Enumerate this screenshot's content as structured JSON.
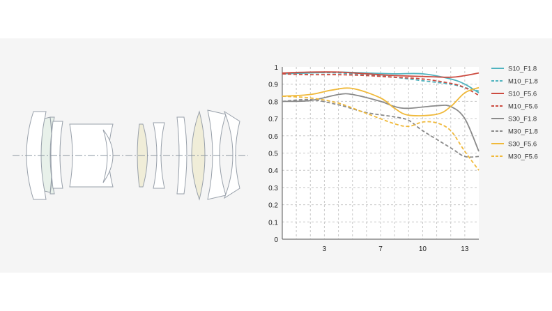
{
  "chart_data": {
    "type": "line",
    "title": "",
    "xlabel": "",
    "ylabel": "",
    "xlim": [
      0,
      14
    ],
    "ylim": [
      0,
      1
    ],
    "xticks": [
      3,
      7,
      10,
      13
    ],
    "yticks": [
      0,
      0.1,
      0.2,
      0.3,
      0.4,
      0.5,
      0.6,
      0.7,
      0.8,
      0.9,
      1
    ],
    "ytick_labels": [
      "0",
      "0.1",
      "0.2",
      "0.3",
      "0.4",
      "0.5",
      "0.6",
      "0.7",
      "0.8",
      "0.9",
      "1"
    ],
    "xtick_labels": [
      "3",
      "7",
      "10",
      "13"
    ],
    "grid": true,
    "legend_position": "right",
    "series": [
      {
        "name": "S10_F1.8",
        "color": "#4fb3bf",
        "dash": false,
        "points": [
          [
            0,
            0.96
          ],
          [
            2,
            0.965
          ],
          [
            4,
            0.97
          ],
          [
            6,
            0.965
          ],
          [
            8,
            0.96
          ],
          [
            10,
            0.96
          ],
          [
            12,
            0.93
          ],
          [
            13,
            0.9
          ],
          [
            14,
            0.85
          ]
        ]
      },
      {
        "name": "M10_F1.8",
        "color": "#4fb3bf",
        "dash": true,
        "points": [
          [
            0,
            0.96
          ],
          [
            2,
            0.965
          ],
          [
            4,
            0.965
          ],
          [
            6,
            0.955
          ],
          [
            8,
            0.94
          ],
          [
            10,
            0.92
          ],
          [
            12,
            0.9
          ],
          [
            13,
            0.88
          ],
          [
            14,
            0.86
          ]
        ]
      },
      {
        "name": "S10_F5.6",
        "color": "#cc4a3f",
        "dash": false,
        "points": [
          [
            0,
            0.965
          ],
          [
            2,
            0.97
          ],
          [
            4,
            0.97
          ],
          [
            6,
            0.96
          ],
          [
            8,
            0.95
          ],
          [
            10,
            0.945
          ],
          [
            12,
            0.94
          ],
          [
            13,
            0.95
          ],
          [
            14,
            0.965
          ]
        ]
      },
      {
        "name": "M10_F5.6",
        "color": "#cc4a3f",
        "dash": true,
        "points": [
          [
            0,
            0.96
          ],
          [
            2,
            0.955
          ],
          [
            4,
            0.955
          ],
          [
            6,
            0.95
          ],
          [
            8,
            0.94
          ],
          [
            10,
            0.93
          ],
          [
            12,
            0.905
          ],
          [
            13,
            0.88
          ],
          [
            14,
            0.835
          ]
        ]
      },
      {
        "name": "S30_F1.8",
        "color": "#8a8a8a",
        "dash": false,
        "points": [
          [
            0,
            0.8
          ],
          [
            2,
            0.805
          ],
          [
            4,
            0.84
          ],
          [
            5,
            0.84
          ],
          [
            7,
            0.8
          ],
          [
            8,
            0.77
          ],
          [
            9,
            0.76
          ],
          [
            11,
            0.775
          ],
          [
            12,
            0.77
          ],
          [
            13,
            0.7
          ],
          [
            14,
            0.51
          ]
        ]
      },
      {
        "name": "M30_F1.8",
        "color": "#8a8a8a",
        "dash": true,
        "points": [
          [
            0,
            0.8
          ],
          [
            2,
            0.81
          ],
          [
            4,
            0.78
          ],
          [
            6,
            0.735
          ],
          [
            8,
            0.71
          ],
          [
            9,
            0.69
          ],
          [
            10,
            0.63
          ],
          [
            12,
            0.53
          ],
          [
            13,
            0.48
          ],
          [
            14,
            0.48
          ]
        ]
      },
      {
        "name": "S30_F5.6",
        "color": "#f0b93a",
        "dash": false,
        "points": [
          [
            0,
            0.83
          ],
          [
            2,
            0.84
          ],
          [
            3.5,
            0.865
          ],
          [
            5,
            0.875
          ],
          [
            7,
            0.82
          ],
          [
            8,
            0.76
          ],
          [
            9,
            0.72
          ],
          [
            11,
            0.725
          ],
          [
            12,
            0.77
          ],
          [
            13,
            0.85
          ],
          [
            14,
            0.88
          ]
        ]
      },
      {
        "name": "M30_F5.6",
        "color": "#f0b93a",
        "dash": true,
        "points": [
          [
            0,
            0.83
          ],
          [
            2,
            0.82
          ],
          [
            4,
            0.79
          ],
          [
            6,
            0.73
          ],
          [
            8,
            0.67
          ],
          [
            9,
            0.655
          ],
          [
            10,
            0.68
          ],
          [
            11,
            0.675
          ],
          [
            12,
            0.63
          ],
          [
            13,
            0.51
          ],
          [
            14,
            0.4
          ]
        ]
      }
    ]
  }
}
